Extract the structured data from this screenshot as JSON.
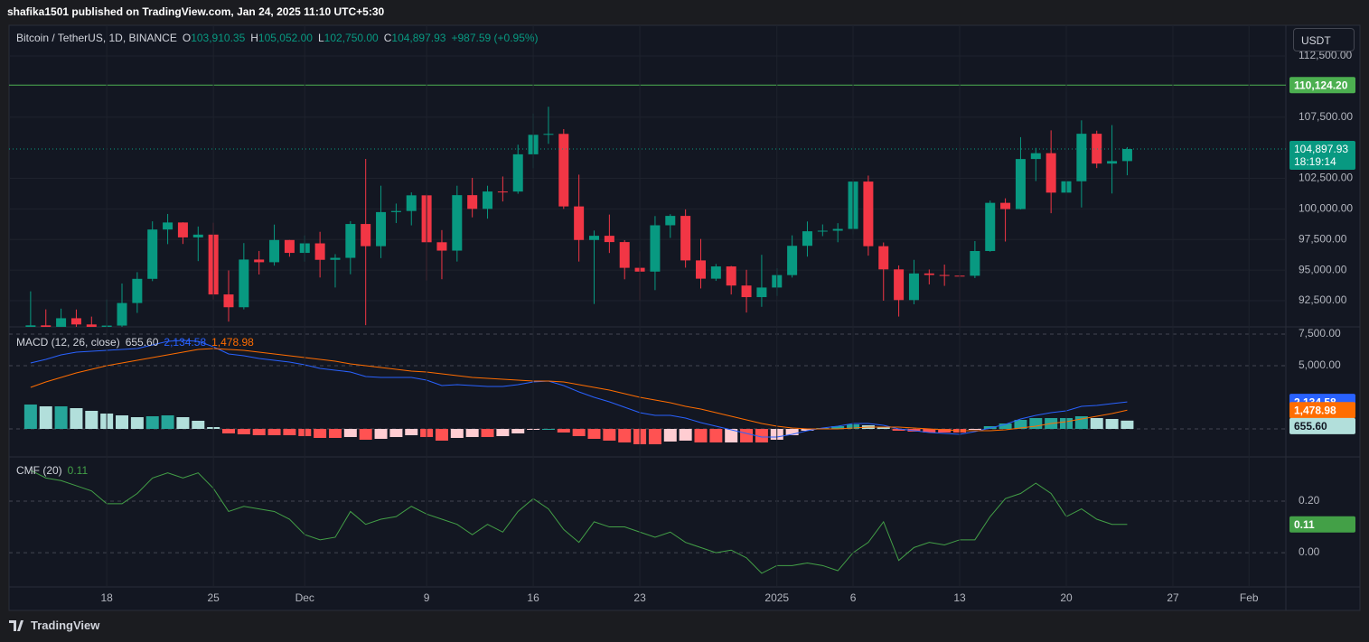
{
  "header": {
    "publisher": "shafika1501 published on TradingView.com, Jan 24, 2025 11:10 UTC+5:30",
    "brand": "TradingView"
  },
  "chart_data": [
    {
      "type": "candlestick",
      "title": "Bitcoin / TetherUS, 1D, BINANCE",
      "ohlc_legend": [
        {
          "key": "O",
          "value": "103,910.35"
        },
        {
          "key": "H",
          "value": "105,052.00"
        },
        {
          "key": "L",
          "value": "102,750.00"
        },
        {
          "key": "C",
          "value": "104,897.93"
        }
      ],
      "change": "+987.59 (+0.95%)",
      "currency": "USDT",
      "x": [
        "2024-11-13",
        "2024-11-14",
        "2024-11-15",
        "2024-11-16",
        "2024-11-17",
        "2024-11-18",
        "2024-11-19",
        "2024-11-20",
        "2024-11-21",
        "2024-11-22",
        "2024-11-23",
        "2024-11-24",
        "2024-11-25",
        "2024-11-26",
        "2024-11-27",
        "2024-11-28",
        "2024-11-29",
        "2024-11-30",
        "2024-12-01",
        "2024-12-02",
        "2024-12-03",
        "2024-12-04",
        "2024-12-05",
        "2024-12-06",
        "2024-12-07",
        "2024-12-08",
        "2024-12-09",
        "2024-12-10",
        "2024-12-11",
        "2024-12-12",
        "2024-12-13",
        "2024-12-14",
        "2024-12-15",
        "2024-12-16",
        "2024-12-17",
        "2024-12-18",
        "2024-12-19",
        "2024-12-20",
        "2024-12-21",
        "2024-12-22",
        "2024-12-23",
        "2024-12-24",
        "2024-12-25",
        "2024-12-26",
        "2024-12-27",
        "2024-12-28",
        "2024-12-29",
        "2024-12-30",
        "2024-12-31",
        "2025-01-01",
        "2025-01-02",
        "2025-01-03",
        "2025-01-04",
        "2025-01-05",
        "2025-01-06",
        "2025-01-07",
        "2025-01-08",
        "2025-01-09",
        "2025-01-10",
        "2025-01-11",
        "2025-01-12",
        "2025-01-13",
        "2025-01-14",
        "2025-01-15",
        "2025-01-16",
        "2025-01-17",
        "2025-01-18",
        "2025-01-19",
        "2025-01-20",
        "2025-01-21",
        "2025-01-22",
        "2025-01-23",
        "2025-01-24"
      ],
      "open": [
        88648,
        90483,
        87251,
        91066,
        90558,
        89845,
        90465,
        92310,
        94286,
        98317,
        98892,
        97672,
        97900,
        93010,
        91965,
        95863,
        95644,
        97460,
        96407,
        97185,
        95840,
        96002,
        98768,
        96956,
        99740,
        99831,
        101110,
        97276,
        96593,
        101125,
        100004,
        101424,
        101420,
        104463,
        106058,
        106133,
        100204,
        97461,
        97805,
        97291,
        95186,
        94878,
        98663,
        99430,
        95792,
        94299,
        95300,
        93738,
        92792,
        93576,
        94592,
        96985,
        98174,
        98220,
        98364,
        102235,
        96954,
        95060,
        92552,
        94726,
        94599,
        94545,
        94536,
        96560,
        100497,
        99988,
        104078,
        104556,
        101331,
        102260,
        106144,
        103706,
        103910.35
      ],
      "high": [
        93265,
        91790,
        91850,
        91779,
        91200,
        92594,
        93905,
        94831,
        98988,
        99588,
        98908,
        98564,
        98871,
        94974,
        97208,
        96564,
        98720,
        97463,
        97836,
        98130,
        96305,
        99000,
        104088,
        101898,
        100439,
        101351,
        101215,
        98270,
        101895,
        102540,
        101895,
        102650,
        105250,
        107793,
        108353,
        106524,
        102800,
        98233,
        99540,
        97448,
        96538,
        99417,
        99569,
        99963,
        97544,
        95500,
        95340,
        95024,
        96250,
        95151,
        97839,
        98976,
        98734,
        98836,
        102480,
        102725,
        97259,
        95382,
        95837,
        95050,
        95450,
        95940,
        97371,
        100681,
        100866,
        105865,
        104988,
        106422,
        109588,
        107240,
        106394,
        106850,
        105052
      ],
      "low": [
        86127,
        86668,
        87073,
        90056,
        88700,
        89376,
        90357,
        91500,
        94100,
        97122,
        97136,
        95734,
        92600,
        90791,
        91792,
        94640,
        95365,
        96092,
        95693,
        94395,
        93579,
        94660,
        90500,
        95981,
        98844,
        98657,
        94150,
        94256,
        95700,
        99311,
        99205,
        100609,
        101237,
        103333,
        105321,
        100000,
        95700,
        92232,
        96398,
        94250,
        92520,
        93365,
        97632,
        95199,
        93500,
        94120,
        93009,
        91530,
        92000,
        92888,
        94392,
        96100,
        97777,
        97276,
        97920,
        96181,
        92500,
        91203,
        92206,
        93831,
        93712,
        89256,
        94346,
        96500,
        97335,
        99950,
        102277,
        99651,
        99550,
        100119,
        103339,
        101262,
        102750
      ],
      "close": [
        90483,
        87251,
        91066,
        90558,
        89845,
        90465,
        92310,
        94286,
        98317,
        98892,
        97672,
        97900,
        93010,
        91965,
        95863,
        95644,
        97460,
        96407,
        97185,
        95840,
        96002,
        98768,
        96956,
        99740,
        99831,
        101110,
        97276,
        96593,
        101125,
        100004,
        101424,
        101420,
        104463,
        106058,
        106133,
        100204,
        97461,
        97805,
        97291,
        95186,
        94878,
        98663,
        99430,
        95792,
        94299,
        95300,
        93738,
        92792,
        93576,
        94592,
        96985,
        98174,
        98220,
        98364,
        102235,
        96954,
        95060,
        92552,
        94726,
        94599,
        94545,
        94536,
        96560,
        100497,
        99988,
        104078,
        104556,
        101331,
        102260,
        106144,
        103706,
        103910.35,
        104897.93
      ],
      "up_color": "#089981",
      "down_color": "#f23645",
      "last_price_label": "104,897.93",
      "countdown": "18:19:14",
      "hline": {
        "value": 110124.2,
        "label": "110,124.20",
        "color": "#4caf50"
      },
      "xlim": [
        "2024-11-11T14:00:00Z",
        "2025-02-03T10:00:00Z"
      ],
      "xticks": [
        {
          "value": "2024-11-18",
          "label": "18"
        },
        {
          "value": "2024-11-25",
          "label": "25"
        },
        {
          "value": "2024-12-01",
          "label": "Dec"
        },
        {
          "value": "2024-12-09",
          "label": "9"
        },
        {
          "value": "2024-12-16",
          "label": "16"
        },
        {
          "value": "2024-12-23",
          "label": "23"
        },
        {
          "value": "2025-01-01",
          "label": "2025"
        },
        {
          "value": "2025-01-06",
          "label": "6"
        },
        {
          "value": "2025-01-13",
          "label": "13"
        },
        {
          "value": "2025-01-20",
          "label": "20"
        },
        {
          "value": "2025-01-27",
          "label": "27"
        },
        {
          "value": "2025-02-01",
          "label": "Feb"
        }
      ],
      "ylim": [
        90360,
        115009
      ],
      "yticks": [
        {
          "value": 92500,
          "label": "92,500.00"
        },
        {
          "value": 95000,
          "label": "95,000.00"
        },
        {
          "value": 97500,
          "label": "97,500.00"
        },
        {
          "value": 100000,
          "label": "100,000.00"
        },
        {
          "value": 102500,
          "label": "102,500.00"
        },
        {
          "value": 107500,
          "label": "107,500.00"
        },
        {
          "value": 112500,
          "label": "112,500.00"
        }
      ],
      "grid": true,
      "grid_style": "solid"
    },
    {
      "type": "macd",
      "title": "MACD (12, 26, close)",
      "series": [
        {
          "name": "MACD",
          "color": "#2962ff",
          "last_label": "2,134.58",
          "values": [
            5214,
            5500,
            5857,
            6071,
            6143,
            6214,
            6286,
            6357,
            6643,
            6929,
            7000,
            6929,
            6500,
            5929,
            5786,
            5571,
            5429,
            5286,
            5071,
            4786,
            4643,
            4500,
            4143,
            4071,
            4071,
            4071,
            3857,
            3429,
            3500,
            3429,
            3357,
            3357,
            3500,
            3714,
            3786,
            3429,
            2929,
            2500,
            2143,
            1714,
            1286,
            1071,
            1071,
            857,
            500,
            214,
            -71,
            -357,
            -643,
            -643,
            -429,
            -143,
            71,
            214,
            429,
            429,
            286,
            0,
            -143,
            -286,
            -357,
            -429,
            -214,
            71,
            357,
            786,
            1071,
            1286,
            1429,
            1786,
            1857,
            2000,
            2134.58
          ]
        },
        {
          "name": "Signal",
          "color": "#ff6d00",
          "last_label": "1,478.98",
          "values": [
            3286,
            3714,
            4071,
            4429,
            4714,
            5000,
            5214,
            5429,
            5643,
            5857,
            6071,
            6286,
            6357,
            6286,
            6214,
            6071,
            5929,
            5786,
            5643,
            5500,
            5357,
            5143,
            5000,
            4857,
            4714,
            4571,
            4500,
            4357,
            4214,
            4071,
            4000,
            3929,
            3857,
            3786,
            3786,
            3714,
            3500,
            3286,
            3071,
            2786,
            2500,
            2286,
            2071,
            1786,
            1571,
            1286,
            1000,
            714,
            429,
            214,
            71,
            0,
            0,
            0,
            71,
            143,
            143,
            143,
            71,
            0,
            -71,
            -143,
            -143,
            -143,
            -71,
            71,
            214,
            429,
            571,
            786,
            1000,
            1214,
            1478.98
          ]
        }
      ],
      "histogram": [
        1928,
        1786,
        1786,
        1642,
        1429,
        1214,
        1072,
        928,
        1000,
        1072,
        929,
        643,
        143,
        -357,
        -428,
        -500,
        -500,
        -500,
        -572,
        -714,
        -714,
        -643,
        -857,
        -786,
        -643,
        -500,
        -643,
        -928,
        -714,
        -642,
        -643,
        -572,
        -357,
        -72,
        0,
        -285,
        -571,
        -786,
        -928,
        -1072,
        -1214,
        -1215,
        -1000,
        -929,
        -1071,
        -1072,
        -1071,
        -1071,
        -1072,
        -857,
        -500,
        -143,
        71,
        214,
        358,
        286,
        143,
        -143,
        -214,
        -286,
        -286,
        -286,
        -71,
        214,
        428,
        715,
        857,
        857,
        858,
        1000,
        857,
        786,
        655.6
      ],
      "histogram_last_label": "655.60",
      "histogram_colors": {
        "up_strong": "#26a69a",
        "up_weak": "#b2dfdb",
        "down_strong": "#ff5252",
        "down_weak": "#ffcdd2"
      },
      "ylim": [
        -2214,
        8071
      ],
      "yticks": [
        {
          "value": 0,
          "label": "0.00"
        },
        {
          "value": 5000,
          "label": "5,000.00"
        },
        {
          "value": 7500,
          "label": "7,500.00"
        }
      ],
      "grid": true,
      "grid_style": "dashed"
    },
    {
      "type": "line",
      "title": "CMF (20)",
      "color": "#43a047",
      "values": [
        0.32,
        0.29,
        0.28,
        0.26,
        0.24,
        0.19,
        0.19,
        0.23,
        0.29,
        0.31,
        0.29,
        0.31,
        0.25,
        0.16,
        0.18,
        0.17,
        0.16,
        0.13,
        0.07,
        0.05,
        0.06,
        0.16,
        0.11,
        0.13,
        0.14,
        0.18,
        0.15,
        0.13,
        0.11,
        0.07,
        0.11,
        0.08,
        0.16,
        0.21,
        0.17,
        0.09,
        0.04,
        0.12,
        0.1,
        0.1,
        0.08,
        0.06,
        0.08,
        0.04,
        0.02,
        0,
        0.01,
        -0.02,
        -0.08,
        -0.05,
        -0.05,
        -0.04,
        -0.05,
        -0.07,
        0,
        0.04,
        0.12,
        -0.03,
        0.02,
        0.04,
        0.03,
        0.05,
        0.05,
        0.14,
        0.21,
        0.23,
        0.27,
        0.23,
        0.14,
        0.17,
        0.13,
        0.11,
        0.11
      ],
      "ylim": [
        -0.133,
        0.372
      ],
      "yticks": [
        {
          "value": 0,
          "label": "0.00"
        },
        {
          "value": 0.2,
          "label": "0.20"
        }
      ],
      "grid": true,
      "grid_style": "dashed"
    }
  ]
}
